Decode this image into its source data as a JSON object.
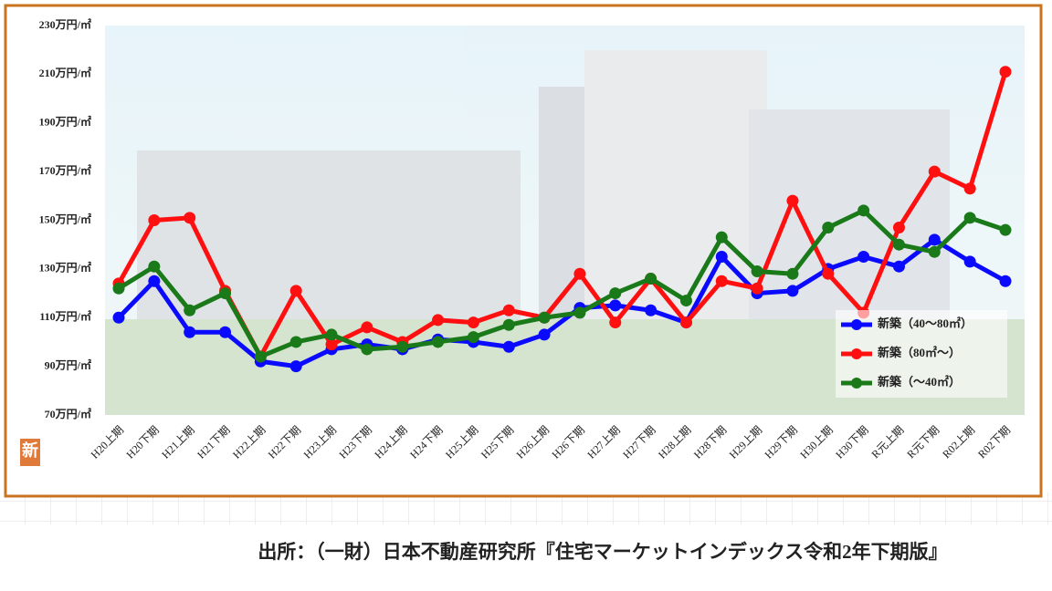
{
  "chart_data": {
    "type": "line",
    "categories": [
      "H20上期",
      "H20下期",
      "H21上期",
      "H21下期",
      "H22上期",
      "H22下期",
      "H23上期",
      "H23下期",
      "H24上期",
      "H24下期",
      "H25上期",
      "H25下期",
      "H26上期",
      "H26下期",
      "H27上期",
      "H27下期",
      "H28上期",
      "H28下期",
      "H29上期",
      "H29下期",
      "H30上期",
      "H30下期",
      "R元上期",
      "R元下期",
      "R02上期",
      "R02下期"
    ],
    "series": [
      {
        "name": "新築（40～80㎡）",
        "color": "#0a0aff",
        "values": [
          110,
          125,
          104,
          104,
          92,
          90,
          97,
          99,
          97,
          101,
          100,
          98,
          103,
          114,
          115,
          113,
          108,
          135,
          120,
          121,
          130,
          135,
          131,
          142,
          133,
          125
        ]
      },
      {
        "name": "新築（80㎡～）",
        "color": "#ff1010",
        "values": [
          124,
          150,
          151,
          121,
          94,
          121,
          99,
          106,
          100,
          109,
          108,
          113,
          110,
          128,
          108,
          126,
          108,
          125,
          122,
          158,
          128,
          112,
          147,
          170,
          163,
          211
        ]
      },
      {
        "name": "新築（～40㎡）",
        "color": "#1a7a1a",
        "values": [
          122,
          131,
          113,
          120,
          94,
          100,
          103,
          97,
          98,
          100,
          102,
          107,
          110,
          112,
          120,
          126,
          117,
          143,
          129,
          128,
          147,
          154,
          140,
          137,
          151,
          146
        ]
      }
    ],
    "ylim": [
      70,
      230
    ],
    "yticks": [
      {
        "value": 70,
        "label": "70万円/㎡"
      },
      {
        "value": 90,
        "label": "90万円/㎡"
      },
      {
        "value": 110,
        "label": "110万円/㎡"
      },
      {
        "value": 130,
        "label": "130万円/㎡"
      },
      {
        "value": 150,
        "label": "150万円/㎡"
      },
      {
        "value": 170,
        "label": "170万円/㎡"
      },
      {
        "value": 190,
        "label": "190万円/㎡"
      },
      {
        "value": 210,
        "label": "210万円/㎡"
      },
      {
        "value": 230,
        "label": "230万円/㎡"
      }
    ],
    "grid": false,
    "legend": "lower right",
    "badge": "新",
    "source": "出所：（一財）日本不動産研究所『住宅マーケットインデックス令和2年下期版』"
  }
}
